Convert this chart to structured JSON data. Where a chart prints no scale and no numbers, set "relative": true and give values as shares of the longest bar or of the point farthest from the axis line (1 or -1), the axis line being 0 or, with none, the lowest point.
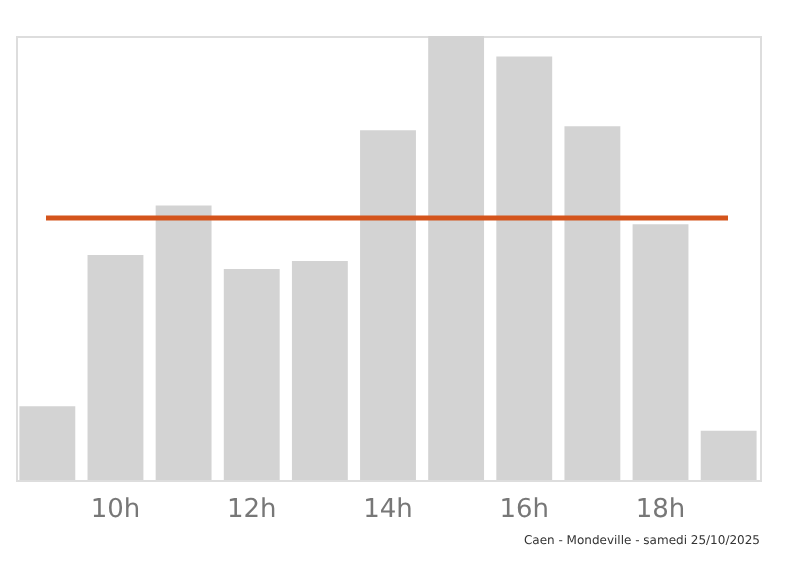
{
  "chart_data": {
    "type": "bar",
    "relative": true,
    "categories": [
      null,
      "10h",
      null,
      "12h",
      null,
      "14h",
      null,
      "16h",
      null,
      "18h",
      null
    ],
    "values": [
      0.166,
      0.507,
      0.618,
      0.475,
      0.493,
      0.788,
      1,
      0.954,
      0.797,
      0.576,
      0.111
    ],
    "color": "#d3d3d3",
    "ref_lines": [
      {
        "axis": "y",
        "value": 0.59,
        "color": "#d4541c"
      }
    ],
    "annotations": [
      "Caen - Mondeville - samedi 25/10/2025"
    ],
    "grid": false
  }
}
